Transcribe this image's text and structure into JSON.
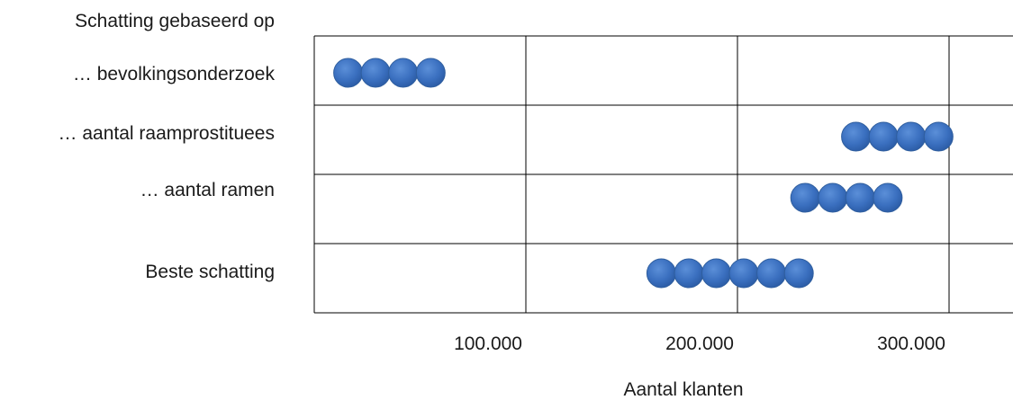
{
  "chart_data": {
    "type": "scatter",
    "title": "",
    "row_header": "Schatting gebaseerd op",
    "xlabel": "Aantal klanten",
    "ylabel": "",
    "xlim": [
      0,
      330000
    ],
    "x_ticks": [
      100000,
      200000,
      300000
    ],
    "x_tick_labels": [
      "100.000",
      "200.000",
      "300.000"
    ],
    "grid": true,
    "dot_color": "#3a6fbf",
    "rows": [
      {
        "label": "… bevolkingsonderzoek",
        "x": [
          16000,
          29000,
          42000,
          55000
        ]
      },
      {
        "label": "… aantal raamprostituees",
        "x": [
          256000,
          269000,
          282000,
          295000
        ]
      },
      {
        "label": "… aantal ramen",
        "x": [
          232000,
          245000,
          258000,
          271000
        ]
      },
      {
        "label": "Beste schatting",
        "x": [
          164000,
          177000,
          190000,
          203000,
          216000,
          229000
        ]
      }
    ]
  }
}
